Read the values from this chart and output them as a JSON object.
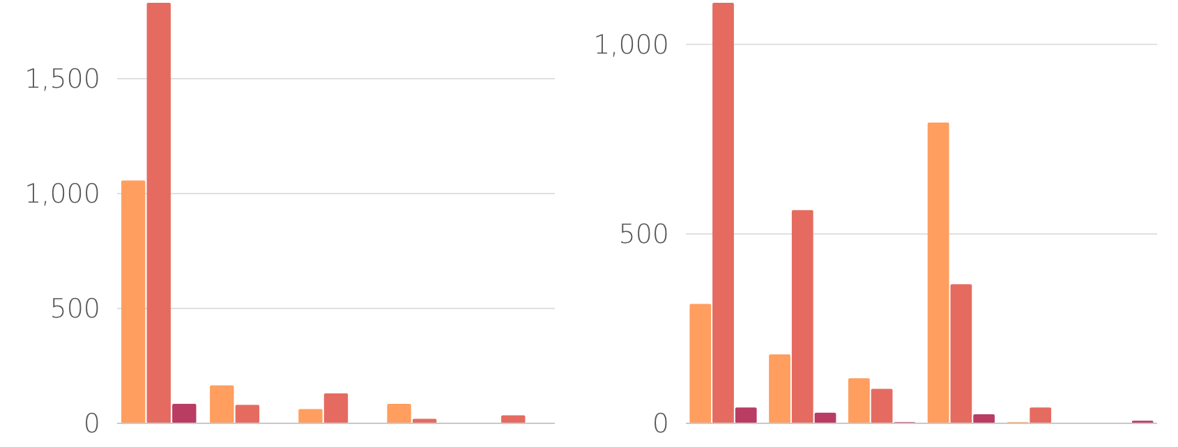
{
  "chart_data": [
    {
      "type": "bar",
      "categories": [
        null,
        null,
        null,
        null,
        null
      ],
      "series": [
        {
          "color": "#ff9e5e",
          "values": [
            1057,
            165,
            62,
            85,
            0
          ]
        },
        {
          "color": "#e56b61",
          "values": [
            1830,
            80,
            130,
            20,
            35
          ]
        },
        {
          "color": "#b93c63",
          "values": [
            85,
            0,
            0,
            0,
            0
          ]
        }
      ],
      "ylim": [
        0,
        1830
      ],
      "yticks": [
        {
          "value": 0,
          "label": "0"
        },
        {
          "value": 500,
          "label": "500"
        },
        {
          "value": 1000,
          "label": "1,000"
        },
        {
          "value": 1500,
          "label": "1,500"
        }
      ],
      "grid": "y"
    },
    {
      "type": "bar",
      "categories": [
        null,
        null,
        null,
        null,
        null,
        null
      ],
      "series": [
        {
          "color": "#ff9e5e",
          "values": [
            315,
            182,
            119,
            794,
            3,
            0
          ]
        },
        {
          "color": "#e56b61",
          "values": [
            1110,
            563,
            91,
            367,
            42,
            0
          ]
        },
        {
          "color": "#b93c63",
          "values": [
            42,
            28,
            3,
            24,
            0,
            7
          ]
        }
      ],
      "ylim": [
        0,
        1110
      ],
      "yticks": [
        {
          "value": 0,
          "label": "0"
        },
        {
          "value": 500,
          "label": "500"
        },
        {
          "value": 1000,
          "label": "1,000"
        }
      ],
      "grid": "y"
    }
  ]
}
